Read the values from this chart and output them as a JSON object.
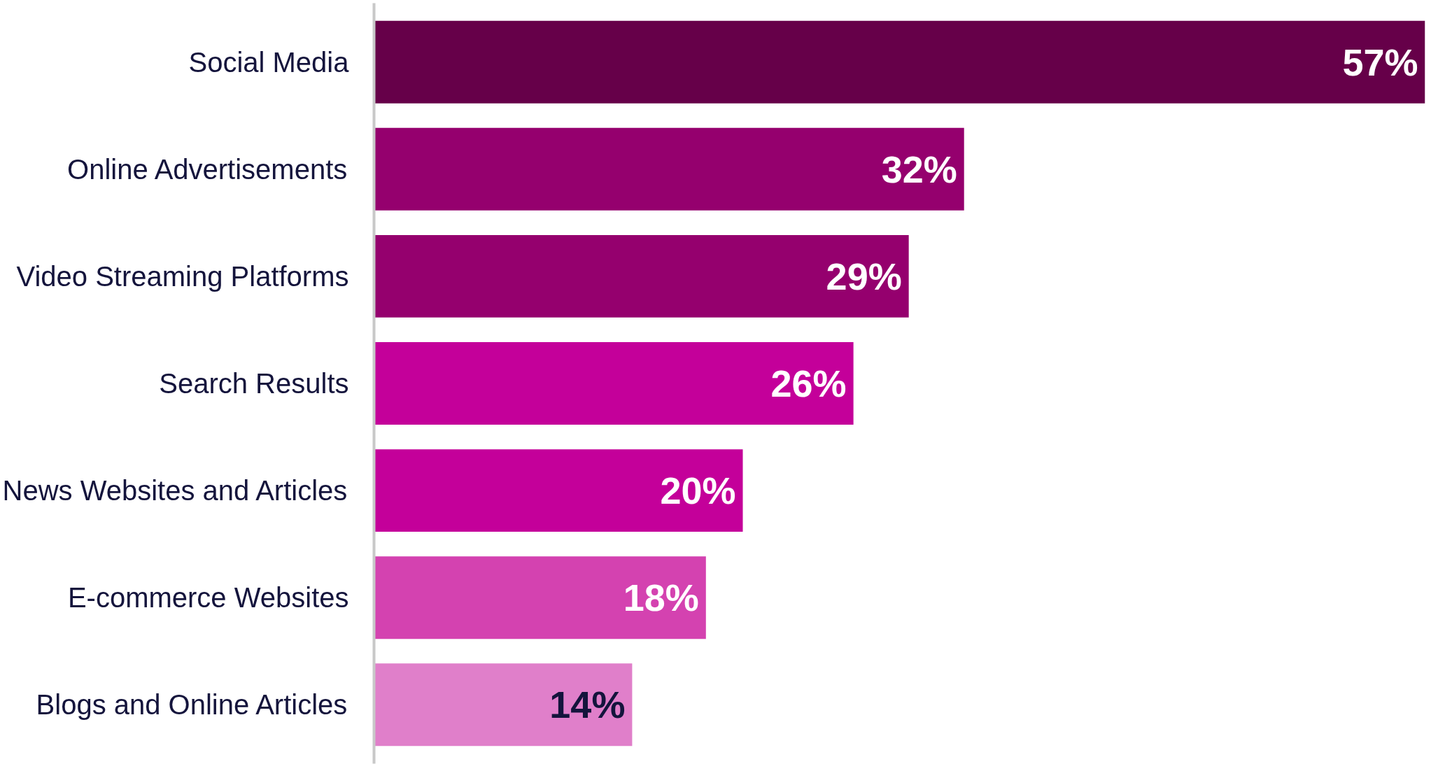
{
  "chart_data": {
    "type": "bar",
    "orientation": "horizontal",
    "categories": [
      "Social Media",
      "Online Advertisements",
      "Video Streaming Platforms",
      "Search Results",
      "News Websites and Articles",
      "E-commerce Websites",
      "Blogs and Online Articles"
    ],
    "values": [
      57,
      32,
      29,
      26,
      20,
      18,
      14
    ],
    "colors": [
      "#660049",
      "#95006e",
      "#95006e",
      "#c4009a",
      "#c4009a",
      "#d442b0",
      "#e07fca"
    ],
    "value_labels": [
      "57%",
      "32%",
      "29%",
      "26%",
      "20%",
      "18%",
      "14%"
    ],
    "grid": false
  }
}
